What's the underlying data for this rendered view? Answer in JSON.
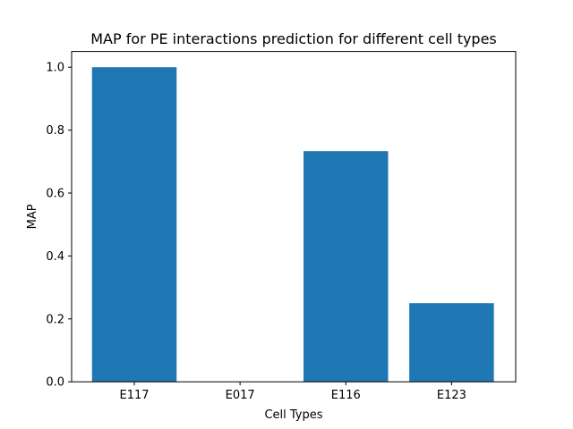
{
  "chart_data": {
    "type": "bar",
    "title": "MAP for PE interactions prediction for different cell types",
    "xlabel": "Cell Types",
    "ylabel": "MAP",
    "categories": [
      "E117",
      "E017",
      "E116",
      "E123"
    ],
    "values": [
      1.0,
      0.0,
      0.733,
      0.25
    ],
    "ylim": [
      0,
      1.05
    ],
    "yticks": [
      0.0,
      0.2,
      0.4,
      0.6,
      0.8,
      1.0
    ],
    "ytick_labels": [
      "0.0",
      "0.2",
      "0.4",
      "0.6",
      "0.8",
      "1.0"
    ],
    "bar_color": "#1f77b4",
    "grid": false,
    "legend": null
  }
}
